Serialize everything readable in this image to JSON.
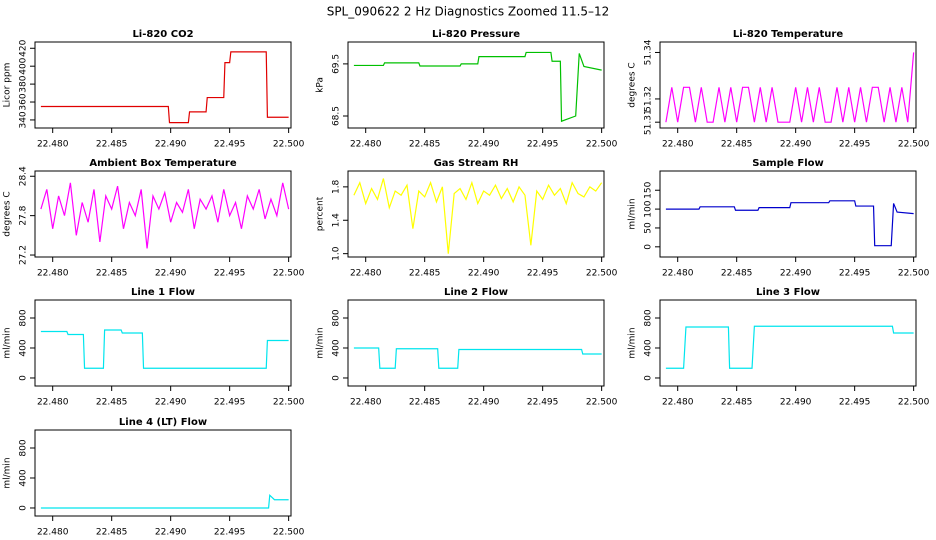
{
  "title": "SPL_090622  2 Hz Diagnostics Zoomed 11.5–12",
  "chart_data": [
    {
      "type": "line",
      "title": "Li-820 CO2",
      "ylabel": "Licor ppm",
      "xlim": [
        22.4785,
        22.5002
      ],
      "ylim": [
        331,
        427
      ],
      "xticks": [
        {
          "value": 22.48,
          "label": "22.480"
        },
        {
          "value": 22.485,
          "label": "22.485"
        },
        {
          "value": 22.49,
          "label": "22.490"
        },
        {
          "value": 22.495,
          "label": "22.495"
        },
        {
          "value": 22.5,
          "label": "22.500"
        }
      ],
      "yticks": [
        340,
        360,
        380,
        400,
        420
      ],
      "x": [
        22.479,
        22.4898,
        22.4899,
        22.4915,
        22.4916,
        22.493,
        22.4931,
        22.4945,
        22.4946,
        22.495,
        22.4951,
        22.4981,
        22.4982,
        22.5
      ],
      "series": [
        {
          "color": "#e00000",
          "values": [
            355,
            355,
            337,
            337,
            349,
            349,
            365,
            365,
            404,
            404,
            416,
            416,
            343,
            343
          ]
        }
      ]
    },
    {
      "type": "line",
      "title": "Li-820 Pressure",
      "ylabel": "kPa",
      "xlim": [
        22.4785,
        22.5002
      ],
      "ylim": [
        68.27,
        69.92
      ],
      "xticks": [
        {
          "value": 22.48,
          "label": "22.480"
        },
        {
          "value": 22.485,
          "label": "22.485"
        },
        {
          "value": 22.49,
          "label": "22.490"
        },
        {
          "value": 22.495,
          "label": "22.495"
        },
        {
          "value": 22.5,
          "label": "22.500"
        }
      ],
      "yticks": [
        68.5,
        69.5
      ],
      "x": [
        22.479,
        22.4815,
        22.4816,
        22.4845,
        22.4846,
        22.488,
        22.4881,
        22.4895,
        22.4896,
        22.4935,
        22.4936,
        22.4957,
        22.4958,
        22.4965,
        22.4966,
        22.4978,
        22.4981,
        22.4985,
        22.5
      ],
      "series": [
        {
          "color": "#00c000",
          "values": [
            69.47,
            69.47,
            69.52,
            69.52,
            69.46,
            69.46,
            69.5,
            69.5,
            69.64,
            69.64,
            69.72,
            69.72,
            69.55,
            69.55,
            68.4,
            68.5,
            69.7,
            69.45,
            69.38
          ]
        }
      ]
    },
    {
      "type": "line",
      "title": "Li-820 Temperature",
      "ylabel": "degrees C",
      "xlim": [
        22.4785,
        22.5002
      ],
      "ylim": [
        51.3075,
        51.3445
      ],
      "xticks": [
        {
          "value": 22.48,
          "label": "22.480"
        },
        {
          "value": 22.485,
          "label": "22.485"
        },
        {
          "value": 22.49,
          "label": "22.490"
        },
        {
          "value": 22.495,
          "label": "22.495"
        },
        {
          "value": 22.5,
          "label": "22.500"
        }
      ],
      "yticks": [
        51.31,
        51.32,
        51.34
      ],
      "x": [
        22.479,
        22.4795,
        22.48,
        22.4805,
        22.481,
        22.4815,
        22.482,
        22.4825,
        22.483,
        22.4835,
        22.484,
        22.4845,
        22.485,
        22.4855,
        22.486,
        22.4865,
        22.487,
        22.4875,
        22.488,
        22.4885,
        22.489,
        22.4895,
        22.49,
        22.4905,
        22.491,
        22.4915,
        22.492,
        22.4925,
        22.493,
        22.4935,
        22.494,
        22.4945,
        22.495,
        22.4955,
        22.496,
        22.4965,
        22.497,
        22.4975,
        22.498,
        22.4985,
        22.499,
        22.4995,
        22.5
      ],
      "series": [
        {
          "color": "#ff00ff",
          "values": [
            51.31,
            51.325,
            51.31,
            51.325,
            51.325,
            51.31,
            51.325,
            51.31,
            51.31,
            51.325,
            51.31,
            51.325,
            51.31,
            51.325,
            51.325,
            51.31,
            51.325,
            51.31,
            51.325,
            51.31,
            51.31,
            51.31,
            51.325,
            51.31,
            51.325,
            51.31,
            51.325,
            51.31,
            51.31,
            51.325,
            51.31,
            51.325,
            51.31,
            51.325,
            51.31,
            51.325,
            51.325,
            51.31,
            51.325,
            51.31,
            51.325,
            51.31,
            51.34
          ]
        }
      ]
    },
    {
      "type": "line",
      "title": "Ambient Box Temperature",
      "ylabel": "degrees C",
      "xlim": [
        22.4785,
        22.5002
      ],
      "ylim": [
        27.17,
        28.48
      ],
      "xticks": [
        {
          "value": 22.48,
          "label": "22.480"
        },
        {
          "value": 22.485,
          "label": "22.485"
        },
        {
          "value": 22.49,
          "label": "22.490"
        },
        {
          "value": 22.495,
          "label": "22.495"
        },
        {
          "value": 22.5,
          "label": "22.500"
        }
      ],
      "yticks": [
        27.2,
        27.8,
        28.4
      ],
      "x": [
        22.479,
        22.4795,
        22.48,
        22.4805,
        22.481,
        22.4815,
        22.482,
        22.4825,
        22.483,
        22.4835,
        22.484,
        22.4845,
        22.485,
        22.4855,
        22.486,
        22.4865,
        22.487,
        22.4875,
        22.488,
        22.4885,
        22.489,
        22.4895,
        22.49,
        22.4905,
        22.491,
        22.4915,
        22.492,
        22.4925,
        22.493,
        22.4935,
        22.494,
        22.4945,
        22.495,
        22.4955,
        22.496,
        22.4965,
        22.497,
        22.4975,
        22.498,
        22.4985,
        22.499,
        22.4995,
        22.5
      ],
      "series": [
        {
          "color": "#ff00ff",
          "values": [
            27.9,
            28.2,
            27.6,
            28.1,
            27.8,
            28.3,
            27.5,
            28.0,
            27.7,
            28.2,
            27.4,
            28.1,
            27.9,
            28.25,
            27.6,
            28.0,
            27.8,
            28.2,
            27.3,
            28.1,
            27.9,
            28.15,
            27.7,
            28.0,
            27.85,
            28.2,
            27.6,
            28.05,
            27.9,
            28.1,
            27.7,
            28.2,
            27.8,
            28.0,
            27.6,
            28.1,
            27.9,
            28.2,
            27.75,
            28.05,
            27.8,
            28.3,
            27.9
          ]
        }
      ]
    },
    {
      "type": "line",
      "title": "Gas Stream RH",
      "ylabel": "percent",
      "xlim": [
        22.4785,
        22.5002
      ],
      "ylim": [
        0.96,
        1.99
      ],
      "xticks": [
        {
          "value": 22.48,
          "label": "22.480"
        },
        {
          "value": 22.485,
          "label": "22.485"
        },
        {
          "value": 22.49,
          "label": "22.490"
        },
        {
          "value": 22.495,
          "label": "22.495"
        },
        {
          "value": 22.5,
          "label": "22.500"
        }
      ],
      "yticks": [
        {
          "value": 1,
          "label": "1.0"
        },
        1.4,
        1.8
      ],
      "x": [
        22.479,
        22.4795,
        22.48,
        22.4805,
        22.481,
        22.4815,
        22.482,
        22.4825,
        22.483,
        22.4835,
        22.484,
        22.4845,
        22.485,
        22.4855,
        22.486,
        22.4865,
        22.487,
        22.4875,
        22.488,
        22.4885,
        22.489,
        22.4895,
        22.49,
        22.4905,
        22.491,
        22.4915,
        22.492,
        22.4925,
        22.493,
        22.4935,
        22.494,
        22.4945,
        22.495,
        22.4955,
        22.496,
        22.4965,
        22.497,
        22.4975,
        22.498,
        22.4985,
        22.499,
        22.4995,
        22.5
      ],
      "series": [
        {
          "color": "#ffff00",
          "values": [
            1.7,
            1.85,
            1.6,
            1.78,
            1.65,
            1.9,
            1.55,
            1.75,
            1.7,
            1.82,
            1.3,
            1.75,
            1.68,
            1.85,
            1.62,
            1.8,
            1.0,
            1.72,
            1.78,
            1.65,
            1.85,
            1.6,
            1.75,
            1.7,
            1.82,
            1.66,
            1.78,
            1.62,
            1.8,
            1.7,
            1.1,
            1.75,
            1.65,
            1.82,
            1.7,
            1.78,
            1.6,
            1.85,
            1.72,
            1.68,
            1.8,
            1.75,
            1.85
          ]
        }
      ]
    },
    {
      "type": "line",
      "title": "Sample Flow",
      "ylabel": "ml/min",
      "xlim": [
        22.4785,
        22.5002
      ],
      "ylim": [
        -27,
        201
      ],
      "xticks": [
        {
          "value": 22.48,
          "label": "22.480"
        },
        {
          "value": 22.485,
          "label": "22.485"
        },
        {
          "value": 22.49,
          "label": "22.490"
        },
        {
          "value": 22.495,
          "label": "22.495"
        },
        {
          "value": 22.5,
          "label": "22.500"
        }
      ],
      "yticks": [
        0,
        50,
        100,
        150
      ],
      "x": [
        22.479,
        22.4818,
        22.4819,
        22.4848,
        22.4849,
        22.4868,
        22.4869,
        22.4895,
        22.4896,
        22.4928,
        22.4929,
        22.495,
        22.4951,
        22.4966,
        22.4967,
        22.4981,
        22.4983,
        22.4986,
        22.5
      ],
      "series": [
        {
          "color": "#0000cc",
          "values": [
            100,
            100,
            106,
            106,
            97,
            97,
            104,
            104,
            117,
            117,
            122,
            122,
            108,
            108,
            3,
            3,
            115,
            92,
            88
          ]
        }
      ]
    },
    {
      "type": "line",
      "title": "Line 1 Flow",
      "ylabel": "ml/min",
      "xlim": [
        22.4785,
        22.5002
      ],
      "ylim": [
        -107,
        1040
      ],
      "xticks": [
        {
          "value": 22.48,
          "label": "22.480"
        },
        {
          "value": 22.485,
          "label": "22.485"
        },
        {
          "value": 22.49,
          "label": "22.490"
        },
        {
          "value": 22.495,
          "label": "22.495"
        },
        {
          "value": 22.5,
          "label": "22.500"
        }
      ],
      "yticks": [
        0,
        400,
        800
      ],
      "x": [
        22.479,
        22.4812,
        22.4813,
        22.4826,
        22.4827,
        22.4843,
        22.4844,
        22.4858,
        22.4859,
        22.4876,
        22.4877,
        22.4981,
        22.4982,
        22.5
      ],
      "series": [
        {
          "color": "#00e5ee",
          "values": [
            620,
            620,
            580,
            580,
            130,
            130,
            640,
            640,
            600,
            600,
            130,
            130,
            500,
            500
          ]
        }
      ]
    },
    {
      "type": "line",
      "title": "Line 2 Flow",
      "ylabel": "ml/min",
      "xlim": [
        22.4785,
        22.5002
      ],
      "ylim": [
        -107,
        1040
      ],
      "xticks": [
        {
          "value": 22.48,
          "label": "22.480"
        },
        {
          "value": 22.485,
          "label": "22.485"
        },
        {
          "value": 22.49,
          "label": "22.490"
        },
        {
          "value": 22.495,
          "label": "22.495"
        },
        {
          "value": 22.5,
          "label": "22.500"
        }
      ],
      "yticks": [
        0,
        400,
        800
      ],
      "x": [
        22.479,
        22.4811,
        22.4812,
        22.4825,
        22.4826,
        22.4861,
        22.4862,
        22.4878,
        22.4879,
        22.4983,
        22.4984,
        22.5
      ],
      "series": [
        {
          "color": "#00e5ee",
          "values": [
            400,
            400,
            130,
            130,
            390,
            390,
            130,
            130,
            380,
            380,
            320,
            320
          ]
        }
      ]
    },
    {
      "type": "line",
      "title": "Line 3 Flow",
      "ylabel": "ml/min",
      "xlim": [
        22.4785,
        22.5002
      ],
      "ylim": [
        -107,
        1040
      ],
      "xticks": [
        {
          "value": 22.48,
          "label": "22.480"
        },
        {
          "value": 22.485,
          "label": "22.485"
        },
        {
          "value": 22.49,
          "label": "22.490"
        },
        {
          "value": 22.495,
          "label": "22.495"
        },
        {
          "value": 22.5,
          "label": "22.500"
        }
      ],
      "yticks": [
        0,
        400,
        800
      ],
      "x": [
        22.479,
        22.4805,
        22.4807,
        22.4843,
        22.4844,
        22.4863,
        22.4865,
        22.4982,
        22.4983,
        22.5
      ],
      "series": [
        {
          "color": "#00e5ee",
          "values": [
            130,
            130,
            680,
            680,
            130,
            130,
            690,
            690,
            600,
            600
          ]
        }
      ]
    },
    {
      "type": "line",
      "title": "Line 4 (LT) Flow",
      "ylabel": "ml/min",
      "xlim": [
        22.4785,
        22.5002
      ],
      "ylim": [
        -107,
        1040
      ],
      "xticks": [
        {
          "value": 22.48,
          "label": "22.480"
        },
        {
          "value": 22.485,
          "label": "22.485"
        },
        {
          "value": 22.49,
          "label": "22.490"
        },
        {
          "value": 22.495,
          "label": "22.495"
        },
        {
          "value": 22.5,
          "label": "22.500"
        }
      ],
      "yticks": [
        0,
        400,
        800
      ],
      "x": [
        22.479,
        22.4983,
        22.4984,
        22.4988,
        22.5
      ],
      "series": [
        {
          "color": "#00e5ee",
          "values": [
            0,
            0,
            170,
            110,
            110
          ]
        }
      ]
    }
  ]
}
